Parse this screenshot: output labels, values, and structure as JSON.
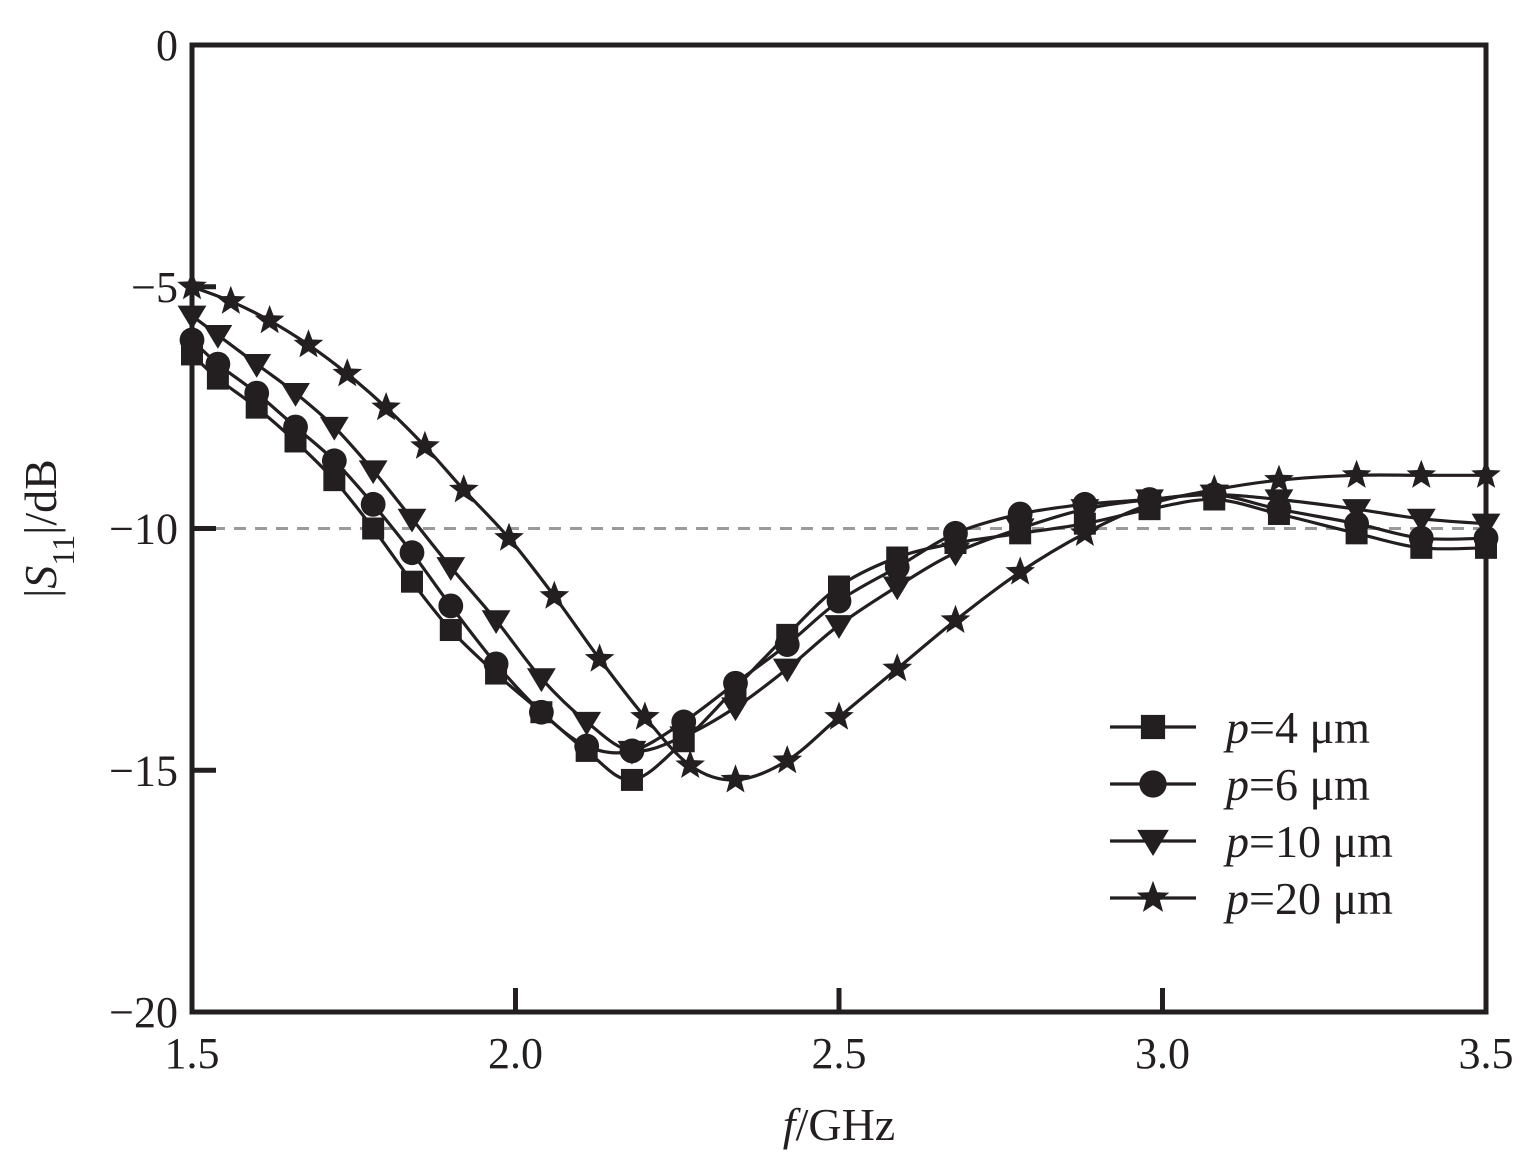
{
  "chart_data": {
    "type": "line",
    "xlabel": {
      "italic": "f",
      "rest": "/GHz"
    },
    "ylabel": {
      "pre": "|",
      "italic": "S",
      "sub": "11",
      "post": "|/dB"
    },
    "xlim": [
      1.5,
      3.5
    ],
    "ylim": [
      -20,
      0
    ],
    "x_ticks": [
      1.5,
      2.0,
      2.5,
      3.0,
      3.5
    ],
    "x_tick_labels": [
      "1.5",
      "2.0",
      "2.5",
      "3.0",
      "3.5"
    ],
    "y_ticks": [
      0,
      -5,
      -10,
      -15,
      -20
    ],
    "y_tick_labels": [
      "0",
      "−5",
      "−10",
      "−15",
      "−20"
    ],
    "reference_line": {
      "y": -10,
      "style": "dashed",
      "color": "#9a9a9a"
    },
    "grid": false,
    "legend_position": "bottom-right",
    "colors": {
      "line": "#231f20",
      "axes": "#231f20"
    },
    "series": [
      {
        "name": "p=4 μm",
        "legend_italic": "p",
        "legend_rest": "=4 μm",
        "marker": "square",
        "x": [
          1.5,
          1.54,
          1.6,
          1.66,
          1.72,
          1.78,
          1.84,
          1.9,
          1.97,
          2.04,
          2.11,
          2.18,
          2.26,
          2.34,
          2.42,
          2.5,
          2.59,
          2.68,
          2.78,
          2.88,
          2.98,
          3.08,
          3.18,
          3.3,
          3.4,
          3.5
        ],
        "y": [
          -6.4,
          -6.9,
          -7.5,
          -8.2,
          -9.0,
          -10.0,
          -11.1,
          -12.1,
          -13.0,
          -13.8,
          -14.6,
          -15.2,
          -14.4,
          -13.3,
          -12.2,
          -11.2,
          -10.6,
          -10.3,
          -10.1,
          -9.9,
          -9.6,
          -9.4,
          -9.7,
          -10.1,
          -10.4,
          -10.4
        ]
      },
      {
        "name": "p=6 μm",
        "legend_italic": "p",
        "legend_rest": "=6 μm",
        "marker": "circle",
        "x": [
          1.5,
          1.54,
          1.6,
          1.66,
          1.72,
          1.78,
          1.84,
          1.9,
          1.97,
          2.04,
          2.11,
          2.18,
          2.26,
          2.34,
          2.42,
          2.5,
          2.59,
          2.68,
          2.78,
          2.88,
          2.98,
          3.08,
          3.18,
          3.3,
          3.4,
          3.5
        ],
        "y": [
          -6.1,
          -6.6,
          -7.2,
          -7.9,
          -8.6,
          -9.5,
          -10.5,
          -11.6,
          -12.8,
          -13.8,
          -14.5,
          -14.6,
          -14.0,
          -13.2,
          -12.4,
          -11.5,
          -10.8,
          -10.1,
          -9.7,
          -9.5,
          -9.4,
          -9.3,
          -9.6,
          -9.9,
          -10.2,
          -10.2
        ]
      },
      {
        "name": "p=10 μm",
        "legend_italic": "p",
        "legend_rest": "=10 μm",
        "marker": "triangle-down",
        "x": [
          1.5,
          1.54,
          1.6,
          1.66,
          1.72,
          1.78,
          1.84,
          1.9,
          1.97,
          2.04,
          2.11,
          2.18,
          2.26,
          2.34,
          2.42,
          2.5,
          2.59,
          2.68,
          2.78,
          2.88,
          2.98,
          3.08,
          3.18,
          3.3,
          3.4,
          3.5
        ],
        "y": [
          -5.6,
          -6.0,
          -6.6,
          -7.2,
          -7.9,
          -8.8,
          -9.8,
          -10.8,
          -11.9,
          -13.1,
          -14.0,
          -14.6,
          -14.3,
          -13.7,
          -12.9,
          -12.0,
          -11.2,
          -10.5,
          -10.0,
          -9.6,
          -9.4,
          -9.3,
          -9.4,
          -9.6,
          -9.8,
          -9.9
        ]
      },
      {
        "name": "p=20 μm",
        "legend_italic": "p",
        "legend_rest": "=20 μm",
        "marker": "star",
        "x": [
          1.5,
          1.56,
          1.62,
          1.68,
          1.74,
          1.8,
          1.86,
          1.92,
          1.99,
          2.06,
          2.13,
          2.2,
          2.27,
          2.34,
          2.42,
          2.5,
          2.59,
          2.68,
          2.78,
          2.88,
          2.98,
          3.08,
          3.18,
          3.3,
          3.4,
          3.5
        ],
        "y": [
          -5.0,
          -5.3,
          -5.7,
          -6.2,
          -6.8,
          -7.5,
          -8.3,
          -9.2,
          -10.2,
          -11.4,
          -12.7,
          -13.9,
          -14.9,
          -15.2,
          -14.8,
          -13.9,
          -12.9,
          -11.9,
          -10.9,
          -10.1,
          -9.5,
          -9.2,
          -9.0,
          -8.9,
          -8.9,
          -8.9
        ]
      }
    ]
  }
}
